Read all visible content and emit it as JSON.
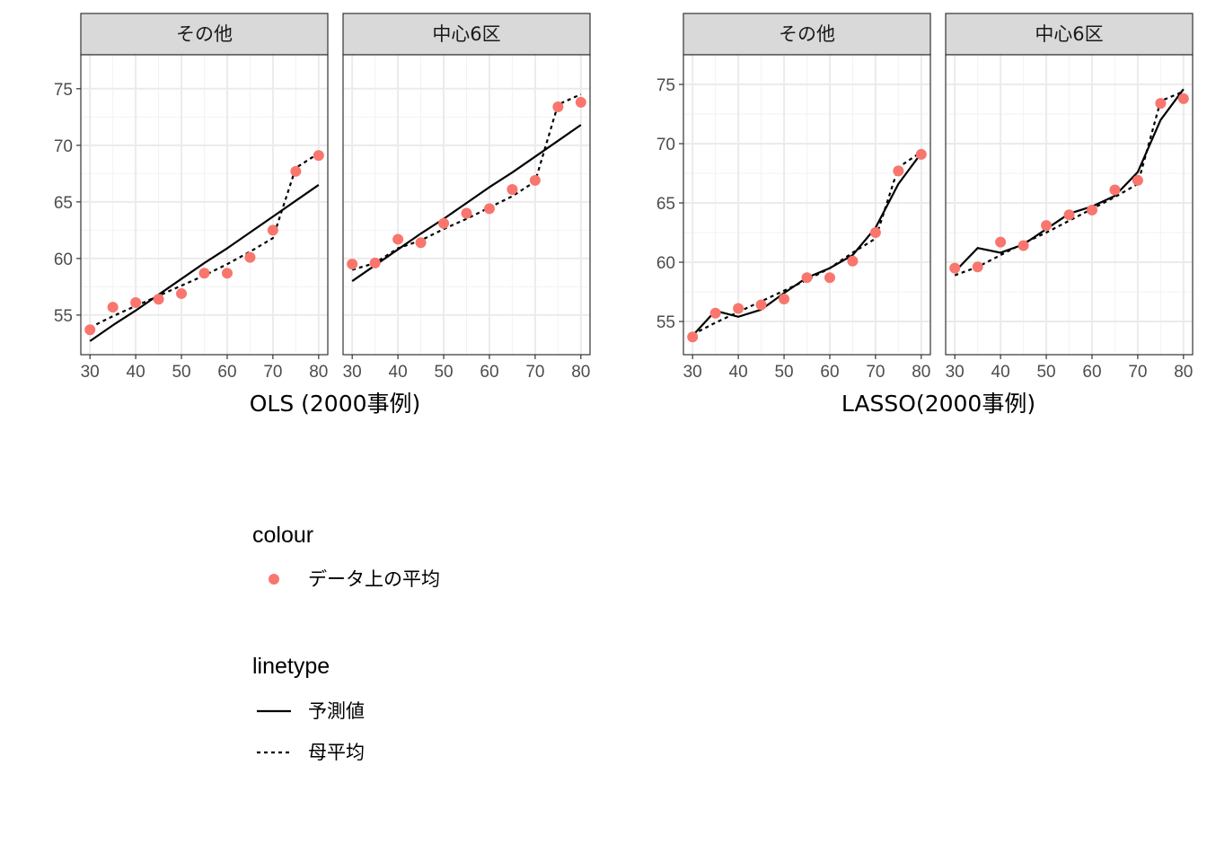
{
  "chart_data": [
    {
      "type": "line",
      "xlabel": "OLS (2000事例)",
      "x": [
        30,
        35,
        40,
        45,
        50,
        55,
        60,
        65,
        70,
        75,
        80
      ],
      "xlim": [
        28,
        82
      ],
      "ylim": [
        51.5,
        78
      ],
      "xticks": [
        30,
        40,
        50,
        60,
        70,
        80
      ],
      "yticks": [
        55,
        60,
        65,
        70,
        75
      ],
      "panels": [
        {
          "strip": "その他",
          "points": [
            53.7,
            55.7,
            56.1,
            56.4,
            56.9,
            58.7,
            58.7,
            60.1,
            62.5,
            67.7,
            69.1
          ],
          "predicted": [
            52.7,
            54.1,
            55.4,
            56.8,
            58.2,
            59.6,
            60.9,
            62.3,
            63.7,
            65.1,
            66.5
          ],
          "population": [
            53.9,
            54.9,
            55.8,
            56.7,
            57.6,
            58.5,
            59.5,
            60.6,
            61.8,
            68.0,
            69.3
          ]
        },
        {
          "strip": "中心6区",
          "points": [
            59.5,
            59.6,
            61.7,
            61.4,
            63.1,
            64.0,
            64.4,
            66.1,
            66.9,
            73.4,
            73.8
          ],
          "predicted": [
            58.0,
            59.4,
            60.8,
            62.2,
            63.5,
            64.9,
            66.3,
            67.6,
            69.0,
            70.4,
            71.8
          ],
          "population": [
            59.0,
            59.6,
            60.9,
            61.6,
            62.6,
            63.5,
            64.5,
            65.5,
            66.8,
            73.6,
            74.5
          ]
        }
      ]
    },
    {
      "type": "line",
      "xlabel": "LASSO(2000事例)",
      "x": [
        30,
        35,
        40,
        45,
        50,
        55,
        60,
        65,
        70,
        75,
        80
      ],
      "xlim": [
        28,
        82
      ],
      "ylim": [
        52.2,
        77.5
      ],
      "xticks": [
        30,
        40,
        50,
        60,
        70,
        80
      ],
      "yticks": [
        55,
        60,
        65,
        70,
        75
      ],
      "panels": [
        {
          "strip": "その他",
          "points": [
            53.7,
            55.7,
            56.1,
            56.4,
            56.9,
            58.7,
            58.7,
            60.1,
            62.5,
            67.7,
            69.1
          ],
          "predicted": [
            53.8,
            55.9,
            55.4,
            56.0,
            57.4,
            58.7,
            59.5,
            60.6,
            62.9,
            66.6,
            69.2
          ],
          "population": [
            53.9,
            54.9,
            55.8,
            56.7,
            57.6,
            58.5,
            59.5,
            60.8,
            62.0,
            68.0,
            69.3
          ]
        },
        {
          "strip": "中心6区",
          "points": [
            59.5,
            59.6,
            61.7,
            61.4,
            63.1,
            64.0,
            64.4,
            66.1,
            66.9,
            73.4,
            73.8
          ],
          "predicted": [
            59.2,
            61.2,
            60.8,
            61.5,
            62.8,
            64.1,
            64.7,
            65.6,
            67.6,
            72.0,
            74.6
          ],
          "population": [
            58.9,
            59.6,
            60.6,
            61.6,
            62.5,
            63.5,
            64.5,
            65.5,
            66.6,
            73.6,
            74.4
          ]
        }
      ]
    }
  ],
  "legend": {
    "placement": "bottom-left",
    "colour": {
      "title": "colour",
      "items": [
        {
          "label": "データ上の平均",
          "color": "#F8766D"
        }
      ]
    },
    "linetype": {
      "title": "linetype",
      "items": [
        {
          "label": "予測値",
          "style": "solid"
        },
        {
          "label": "母平均",
          "style": "dotted"
        }
      ]
    }
  }
}
